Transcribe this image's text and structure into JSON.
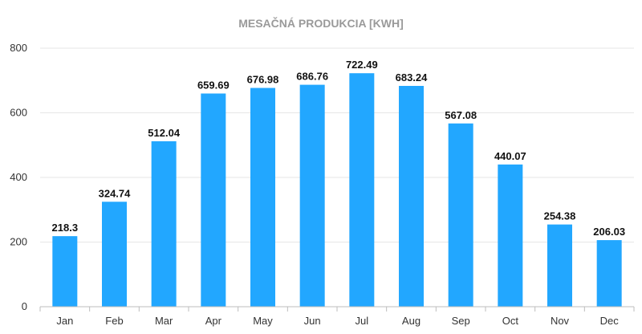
{
  "chart_data": {
    "type": "bar",
    "title": "MESAČNÁ PRODUKCIA [KWH]",
    "xlabel": "",
    "ylabel": "",
    "categories": [
      "Jan",
      "Feb",
      "Mar",
      "Apr",
      "May",
      "Jun",
      "Jul",
      "Aug",
      "Sep",
      "Oct",
      "Nov",
      "Dec"
    ],
    "values": [
      218.3,
      324.74,
      512.04,
      659.69,
      676.98,
      686.76,
      722.49,
      683.24,
      567.08,
      440.07,
      254.38,
      206.03
    ],
    "data_labels": [
      "218.3",
      "324.74",
      "512.04",
      "659.69",
      "676.98",
      "686.76",
      "722.49",
      "683.24",
      "567.08",
      "440.07",
      "254.38",
      "206.03"
    ],
    "ylim": [
      0,
      800
    ],
    "yticks": [
      0,
      200,
      400,
      600,
      800
    ],
    "ytick_labels": [
      "0",
      "200",
      "400",
      "600",
      "800"
    ],
    "grid": true,
    "legend": "none",
    "bar_color": "#22a7ff"
  }
}
